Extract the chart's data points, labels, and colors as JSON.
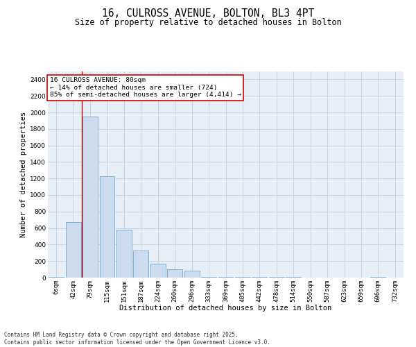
{
  "title_line1": "16, CULROSS AVENUE, BOLTON, BL3 4PT",
  "title_line2": "Size of property relative to detached houses in Bolton",
  "xlabel": "Distribution of detached houses by size in Bolton",
  "ylabel": "Number of detached properties",
  "categories": [
    "6sqm",
    "42sqm",
    "79sqm",
    "115sqm",
    "151sqm",
    "187sqm",
    "224sqm",
    "260sqm",
    "296sqm",
    "333sqm",
    "369sqm",
    "405sqm",
    "442sqm",
    "478sqm",
    "514sqm",
    "550sqm",
    "587sqm",
    "623sqm",
    "659sqm",
    "696sqm",
    "732sqm"
  ],
  "values": [
    5,
    670,
    1950,
    1230,
    580,
    330,
    170,
    100,
    80,
    10,
    10,
    5,
    5,
    5,
    5,
    0,
    0,
    0,
    0,
    5,
    0
  ],
  "bar_color": "#ccdcee",
  "bar_edge_color": "#6aaad4",
  "grid_color": "#c8d4e0",
  "background_color": "#e8eef5",
  "red_line_index": 2,
  "annotation_text": "16 CULROSS AVENUE: 80sqm\n← 14% of detached houses are smaller (724)\n85% of semi-detached houses are larger (4,414) →",
  "annotation_box_color": "#ffffff",
  "annotation_box_edge": "#cc0000",
  "ylim": [
    0,
    2500
  ],
  "yticks": [
    0,
    200,
    400,
    600,
    800,
    1000,
    1200,
    1400,
    1600,
    1800,
    2000,
    2200,
    2400
  ],
  "footer_text": "Contains HM Land Registry data © Crown copyright and database right 2025.\nContains public sector information licensed under the Open Government Licence v3.0.",
  "title_fontsize": 10.5,
  "subtitle_fontsize": 8.5,
  "tick_fontsize": 6.5,
  "label_fontsize": 7.5,
  "annotation_fontsize": 6.8,
  "footer_fontsize": 5.5
}
